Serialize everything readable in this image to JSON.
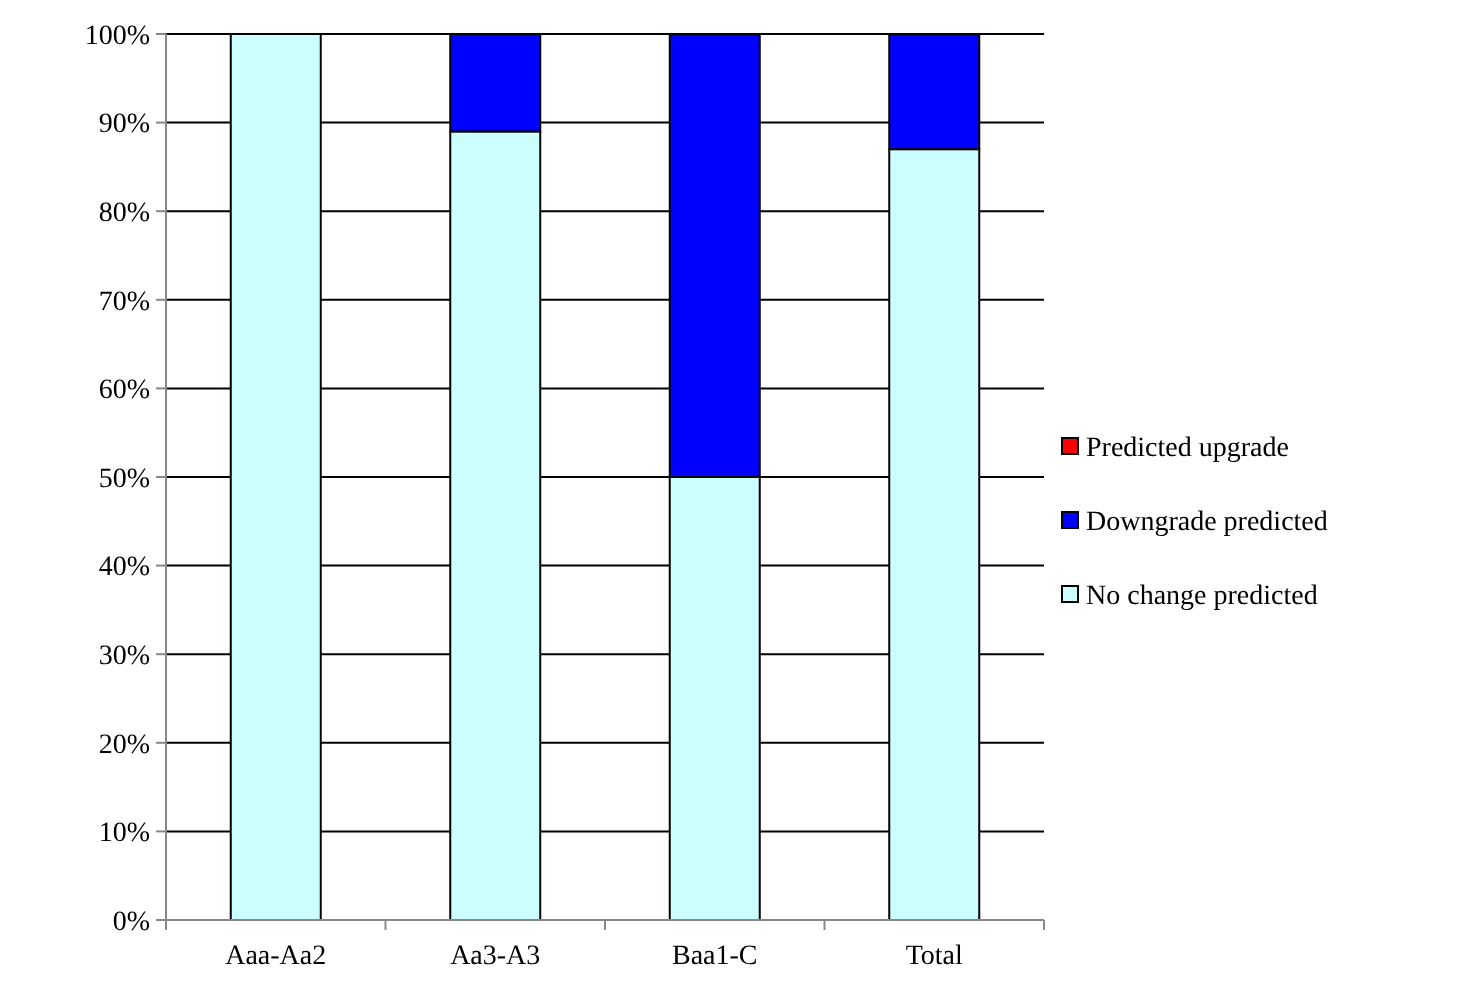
{
  "chart_data": {
    "type": "bar",
    "stacked": true,
    "categories": [
      "Aaa-Aa2",
      "Aa3-A3",
      "Baa1-C",
      "Total"
    ],
    "series": [
      {
        "name": "No change predicted",
        "color": "#ccffff",
        "values": [
          100,
          89,
          50,
          87
        ]
      },
      {
        "name": "Downgrade predicted",
        "color": "#0000ff",
        "values": [
          0,
          11,
          50,
          13
        ]
      },
      {
        "name": "Predicted upgrade",
        "color": "#ff0000",
        "values": [
          0,
          0,
          0,
          0
        ]
      }
    ],
    "ylim": [
      0,
      100
    ],
    "yticks": [
      {
        "value": 0,
        "label": "0%"
      },
      {
        "value": 10,
        "label": "10%"
      },
      {
        "value": 20,
        "label": "20%"
      },
      {
        "value": 30,
        "label": "30%"
      },
      {
        "value": 40,
        "label": "40%"
      },
      {
        "value": 50,
        "label": "50%"
      },
      {
        "value": 60,
        "label": "60%"
      },
      {
        "value": 70,
        "label": "70%"
      },
      {
        "value": 80,
        "label": "80%"
      },
      {
        "value": 90,
        "label": "90%"
      },
      {
        "value": 100,
        "label": "100%"
      }
    ],
    "grid": "y",
    "legend": "right"
  }
}
